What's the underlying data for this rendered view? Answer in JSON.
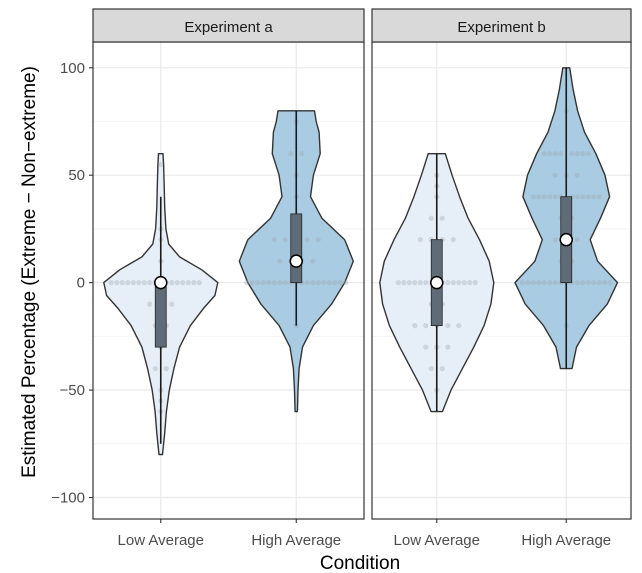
{
  "chart_data": {
    "type": "violin",
    "title": "",
    "xlabel": "Condition",
    "ylabel": "Estimated Percentage (Extreme − Non−extreme)",
    "ylim": [
      -110,
      112
    ],
    "yticks": [
      -100,
      -50,
      0,
      50,
      100
    ],
    "ytick_labels": [
      "−100",
      "−50",
      "0",
      "50",
      "100"
    ],
    "categories": [
      "Low Average",
      "High Average"
    ],
    "grid": true,
    "colors": {
      "low": "#e6eff8",
      "high": "#a9cce3",
      "box": "#5f6b76",
      "outline": "#333333",
      "strip_bg": "#d9d9d9",
      "median_point": "#ffffff"
    },
    "panels": [
      {
        "name": "Experiment a",
        "groups": [
          {
            "category": "Low Average",
            "fill": "#e6eff8",
            "min": -75,
            "q1": -30,
            "median": 0,
            "q3": 0,
            "max": 40,
            "violin": [
              [
                -80,
                0.03
              ],
              [
                -75,
                0.05
              ],
              [
                -70,
                0.07
              ],
              [
                -60,
                0.1
              ],
              [
                -50,
                0.15
              ],
              [
                -40,
                0.23
              ],
              [
                -30,
                0.33
              ],
              [
                -20,
                0.52
              ],
              [
                -12,
                0.75
              ],
              [
                -6,
                0.95
              ],
              [
                0,
                1.0
              ],
              [
                6,
                0.72
              ],
              [
                12,
                0.33
              ],
              [
                18,
                0.14
              ],
              [
                25,
                0.09
              ],
              [
                35,
                0.07
              ],
              [
                45,
                0.06
              ],
              [
                55,
                0.05
              ],
              [
                60,
                0.04
              ]
            ],
            "points": [
              [
                -60,
                0
              ],
              [
                -55,
                0
              ],
              [
                -50,
                0
              ],
              [
                -40,
                -1
              ],
              [
                -40,
                1
              ],
              [
                -30,
                0
              ],
              [
                -25,
                0
              ],
              [
                -20,
                -1
              ],
              [
                -20,
                1
              ],
              [
                -10,
                -2
              ],
              [
                -10,
                2
              ],
              [
                -5,
                0
              ],
              [
                0,
                -9
              ],
              [
                0,
                -8
              ],
              [
                0,
                -7
              ],
              [
                0,
                -6
              ],
              [
                0,
                -5
              ],
              [
                0,
                -4
              ],
              [
                0,
                -3
              ],
              [
                0,
                -2
              ],
              [
                0,
                -1
              ],
              [
                0,
                1
              ],
              [
                0,
                2
              ],
              [
                0,
                3
              ],
              [
                0,
                4
              ],
              [
                0,
                5
              ],
              [
                0,
                6
              ],
              [
                0,
                7
              ],
              [
                10,
                0
              ],
              [
                20,
                0
              ],
              [
                25,
                0
              ],
              [
                55,
                0
              ]
            ]
          },
          {
            "category": "High Average",
            "fill": "#a9cce3",
            "min": -20,
            "q1": 0,
            "median": 10,
            "q3": 32,
            "max": 80,
            "violin": [
              [
                -60,
                0.02
              ],
              [
                -50,
                0.03
              ],
              [
                -40,
                0.05
              ],
              [
                -30,
                0.11
              ],
              [
                -20,
                0.3
              ],
              [
                -10,
                0.62
              ],
              [
                0,
                0.85
              ],
              [
                10,
                1.0
              ],
              [
                20,
                0.85
              ],
              [
                30,
                0.45
              ],
              [
                40,
                0.25
              ],
              [
                50,
                0.3
              ],
              [
                60,
                0.42
              ],
              [
                70,
                0.4
              ],
              [
                75,
                0.35
              ],
              [
                80,
                0.32
              ]
            ],
            "points": [
              [
                -20,
                0
              ],
              [
                0,
                -9
              ],
              [
                0,
                -8
              ],
              [
                0,
                -7
              ],
              [
                0,
                -6
              ],
              [
                0,
                -5
              ],
              [
                0,
                -4
              ],
              [
                0,
                -3
              ],
              [
                0,
                -2
              ],
              [
                0,
                -1
              ],
              [
                0,
                0
              ],
              [
                0,
                1
              ],
              [
                0,
                2
              ],
              [
                0,
                3
              ],
              [
                0,
                4
              ],
              [
                0,
                5
              ],
              [
                0,
                6
              ],
              [
                0,
                7
              ],
              [
                0,
                8
              ],
              [
                0,
                9
              ],
              [
                10,
                -3
              ],
              [
                10,
                -1
              ],
              [
                10,
                1
              ],
              [
                10,
                3
              ],
              [
                20,
                -4
              ],
              [
                20,
                -2
              ],
              [
                20,
                0
              ],
              [
                20,
                2
              ],
              [
                20,
                4
              ],
              [
                30,
                0
              ],
              [
                40,
                0
              ],
              [
                50,
                0
              ],
              [
                60,
                -1
              ],
              [
                60,
                1
              ],
              [
                75,
                0
              ]
            ]
          }
        ]
      },
      {
        "name": "Experiment b",
        "groups": [
          {
            "category": "Low Average",
            "fill": "#e6eff8",
            "min": -60,
            "q1": -20,
            "median": 0,
            "q3": 20,
            "max": 60,
            "violin": [
              [
                -60,
                0.1
              ],
              [
                -50,
                0.25
              ],
              [
                -40,
                0.45
              ],
              [
                -30,
                0.65
              ],
              [
                -20,
                0.83
              ],
              [
                -10,
                0.95
              ],
              [
                0,
                1.0
              ],
              [
                10,
                0.92
              ],
              [
                20,
                0.75
              ],
              [
                30,
                0.55
              ],
              [
                40,
                0.4
              ],
              [
                50,
                0.27
              ],
              [
                60,
                0.15
              ]
            ],
            "points": [
              [
                -50,
                0
              ],
              [
                -40,
                -1
              ],
              [
                -40,
                1
              ],
              [
                -30,
                -2
              ],
              [
                -30,
                0
              ],
              [
                -30,
                2
              ],
              [
                -20,
                -4
              ],
              [
                -20,
                -2
              ],
              [
                -20,
                0
              ],
              [
                -20,
                2
              ],
              [
                -20,
                4
              ],
              [
                -10,
                -1
              ],
              [
                -10,
                1
              ],
              [
                0,
                -7
              ],
              [
                0,
                -6
              ],
              [
                0,
                -5
              ],
              [
                0,
                -4
              ],
              [
                0,
                -3
              ],
              [
                0,
                -2
              ],
              [
                0,
                -1
              ],
              [
                0,
                1
              ],
              [
                0,
                2
              ],
              [
                0,
                3
              ],
              [
                0,
                4
              ],
              [
                0,
                5
              ],
              [
                0,
                6
              ],
              [
                0,
                7
              ],
              [
                10,
                0
              ],
              [
                20,
                -3
              ],
              [
                20,
                -1
              ],
              [
                20,
                1
              ],
              [
                20,
                3
              ],
              [
                30,
                -1
              ],
              [
                30,
                1
              ],
              [
                40,
                0
              ],
              [
                45,
                0
              ],
              [
                50,
                0
              ]
            ]
          },
          {
            "category": "High Average",
            "fill": "#a9cce3",
            "min": -40,
            "q1": 0,
            "median": 20,
            "q3": 40,
            "max": 100,
            "violin": [
              [
                -40,
                0.1
              ],
              [
                -30,
                0.18
              ],
              [
                -20,
                0.4
              ],
              [
                -10,
                0.72
              ],
              [
                0,
                0.9
              ],
              [
                10,
                0.55
              ],
              [
                20,
                0.42
              ],
              [
                30,
                0.6
              ],
              [
                40,
                0.76
              ],
              [
                50,
                0.68
              ],
              [
                60,
                0.52
              ],
              [
                70,
                0.32
              ],
              [
                80,
                0.2
              ],
              [
                90,
                0.12
              ],
              [
                100,
                0.06
              ]
            ],
            "points": [
              [
                -20,
                0
              ],
              [
                0,
                -8
              ],
              [
                0,
                -7
              ],
              [
                0,
                -6
              ],
              [
                0,
                -5
              ],
              [
                0,
                -4
              ],
              [
                0,
                -3
              ],
              [
                0,
                -2
              ],
              [
                0,
                -1
              ],
              [
                0,
                0
              ],
              [
                0,
                1
              ],
              [
                0,
                2
              ],
              [
                0,
                3
              ],
              [
                0,
                4
              ],
              [
                0,
                5
              ],
              [
                0,
                6
              ],
              [
                0,
                7
              ],
              [
                0,
                8
              ],
              [
                10,
                -1
              ],
              [
                10,
                1
              ],
              [
                20,
                -2
              ],
              [
                20,
                0
              ],
              [
                20,
                2
              ],
              [
                30,
                -1
              ],
              [
                30,
                1
              ],
              [
                40,
                -6
              ],
              [
                40,
                -5
              ],
              [
                40,
                -4
              ],
              [
                40,
                -3
              ],
              [
                40,
                -2
              ],
              [
                40,
                -1
              ],
              [
                40,
                1
              ],
              [
                40,
                2
              ],
              [
                40,
                3
              ],
              [
                40,
                4
              ],
              [
                40,
                5
              ],
              [
                40,
                6
              ],
              [
                50,
                -2
              ],
              [
                50,
                0
              ],
              [
                50,
                2
              ],
              [
                60,
                -4
              ],
              [
                60,
                -3
              ],
              [
                60,
                -2
              ],
              [
                60,
                -1
              ],
              [
                60,
                1
              ],
              [
                60,
                2
              ],
              [
                60,
                3
              ],
              [
                60,
                4
              ],
              [
                80,
                0
              ]
            ]
          }
        ]
      }
    ]
  }
}
